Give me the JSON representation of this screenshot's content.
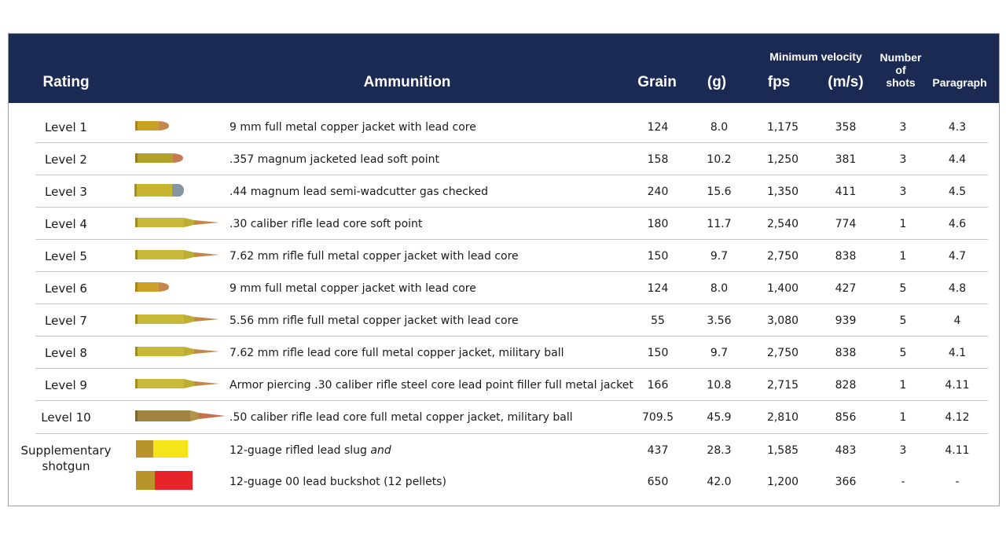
{
  "header": {
    "rating": "Rating",
    "ammunition": "Ammunition",
    "grain": "Grain",
    "g": "(g)",
    "min_velocity": "Minimum velocity",
    "fps": "fps",
    "ms": "(m/s)",
    "shots_line1": "Number",
    "shots_line2": "of",
    "shots_line3": "shots",
    "paragraph": "Paragraph"
  },
  "rows": [
    {
      "rating": "Level 1",
      "ammo": "9 mm full metal copper jacket with lead core",
      "grain": "124",
      "g": "8.0",
      "fps": "1,175",
      "ms": "358",
      "shots": "3",
      "para": "4.3",
      "icon": "pistol-round-icon"
    },
    {
      "rating": "Level 2",
      "ammo": ".357 magnum jacketed lead soft point",
      "grain": "158",
      "g": "10.2",
      "fps": "1,250",
      "ms": "381",
      "shots": "3",
      "para": "4.4",
      "icon": "magnum-round-icon"
    },
    {
      "rating": "Level 3",
      "ammo": ".44 magnum lead semi-wadcutter gas checked",
      "grain": "240",
      "g": "15.6",
      "fps": "1,350",
      "ms": "411",
      "shots": "3",
      "para": "4.5",
      "icon": "wadcutter-round-icon"
    },
    {
      "rating": "Level 4",
      "ammo": ".30 caliber rifle lead core soft point",
      "grain": "180",
      "g": "11.7",
      "fps": "2,540",
      "ms": "774",
      "shots": "1",
      "para": "4.6",
      "icon": "rifle-round-icon"
    },
    {
      "rating": "Level 5",
      "ammo": "7.62 mm rifle full metal copper jacket with lead core",
      "grain": "150",
      "g": "9.7",
      "fps": "2,750",
      "ms": "838",
      "shots": "1",
      "para": "4.7",
      "icon": "rifle-round-icon"
    },
    {
      "rating": "Level 6",
      "ammo": "9 mm full metal copper jacket with lead core",
      "grain": "124",
      "g": "8.0",
      "fps": "1,400",
      "ms": "427",
      "shots": "5",
      "para": "4.8",
      "icon": "pistol-round-icon"
    },
    {
      "rating": "Level 7",
      "ammo": "5.56 mm rifle full metal copper jacket with lead core",
      "grain": "55",
      "g": "3.56",
      "fps": "3,080",
      "ms": "939",
      "shots": "5",
      "para": "4",
      "icon": "rifle-round-icon"
    },
    {
      "rating": "Level 8",
      "ammo": "7.62 mm rifle lead core full metal copper jacket, military ball",
      "grain": "150",
      "g": "9.7",
      "fps": "2,750",
      "ms": "838",
      "shots": "5",
      "para": "4.1",
      "icon": "rifle-round-icon"
    },
    {
      "rating": "Level 9",
      "ammo": "Armor piercing .30 caliber rifle steel core lead point filler full metal jacket",
      "grain": "166",
      "g": "10.8",
      "fps": "2,715",
      "ms": "828",
      "shots": "1",
      "para": "4.11",
      "icon": "rifle-round-icon"
    },
    {
      "rating": "Level 10",
      "ammo": ".50 caliber rifle lead core full metal copper jacket, military ball",
      "grain": "709.5",
      "g": "45.9",
      "fps": "2,810",
      "ms": "856",
      "shots": "1",
      "para": "4.12",
      "icon": "large-rifle-round-icon"
    },
    {
      "rating": "",
      "ammo": "12-guage rifled lead slug",
      "ammo_suffix": "and",
      "grain": "437",
      "g": "28.3",
      "fps": "1,585",
      "ms": "483",
      "shots": "3",
      "para": "4.11",
      "icon": "shotgun-shell-yellow-icon"
    },
    {
      "rating": "",
      "ammo": "12-guage 00 lead buckshot (12 pellets)",
      "grain": "650",
      "g": "42.0",
      "fps": "1,200",
      "ms": "366",
      "shots": "-",
      "para": "-",
      "icon": "shotgun-shell-red-icon"
    }
  ],
  "supplementary": {
    "line1": "Supplementary",
    "line2": "shotgun"
  },
  "colors": {
    "header_bg": "#1b2a52",
    "separator": "#c3c7cd",
    "brass": "#c9a227",
    "copper": "#c4704a",
    "shell_yellow": "#f5e418",
    "shell_red": "#e8242a"
  }
}
